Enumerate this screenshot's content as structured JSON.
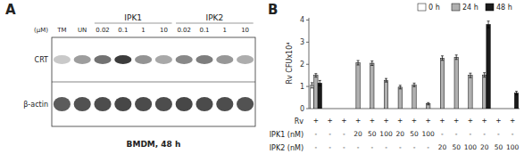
{
  "chart_data": [
    {
      "type": "heatmap",
      "title": "A",
      "xlabel": "(μM)",
      "categories": [
        "TM",
        "UN",
        "0.02",
        "0.1",
        "1",
        "10",
        "0.02",
        "0.1",
        "1",
        "10"
      ],
      "column_groups": [
        null,
        null,
        "IPK1",
        "IPK1",
        "IPK1",
        "IPK1",
        "IPK2",
        "IPK2",
        "IPK2",
        "IPK2"
      ],
      "y_categories": [
        "CRT",
        "β-actin"
      ],
      "values": [
        [
          0.25,
          0.45,
          0.65,
          0.9,
          0.5,
          0.4,
          0.55,
          0.6,
          0.48,
          0.38
        ],
        [
          0.75,
          0.8,
          0.82,
          0.85,
          0.83,
          0.82,
          0.85,
          0.83,
          0.82,
          0.8
        ]
      ],
      "annotation": "BMDM, 48 h"
    },
    {
      "type": "bar",
      "title": "B",
      "ylabel": "Rv CFUx10⁴",
      "ylim": [
        0,
        4.1
      ],
      "yticks": [
        0,
        1,
        2,
        3,
        4
      ],
      "legend": "upper right",
      "category_rows": [
        {
          "name": "Rv",
          "labels": [
            "+",
            "+",
            "+",
            "+",
            "+",
            "+",
            "+",
            "+",
            "+",
            "+",
            "+",
            "+",
            "+",
            "+",
            "+"
          ]
        },
        {
          "name": "IPK1 (nM)",
          "labels": [
            "-",
            "-",
            "-",
            "20",
            "50",
            "100",
            "20",
            "50",
            "100",
            "-",
            "-",
            "-",
            "-",
            "-",
            "-"
          ]
        },
        {
          "name": "IPK2 (nM)",
          "labels": [
            "-",
            "-",
            "-",
            "-",
            "-",
            "-",
            "-",
            "-",
            "-",
            "20",
            "50",
            "100",
            "20",
            "50",
            "100"
          ]
        }
      ],
      "series": [
        {
          "name": "0 h",
          "color": "#ffffff",
          "values": [
            1.05,
            null,
            null,
            null,
            null,
            null,
            null,
            null,
            null,
            null,
            null,
            null,
            null,
            null,
            null
          ],
          "errors": [
            0.12,
            null,
            null,
            null,
            null,
            null,
            null,
            null,
            null,
            null,
            null,
            null,
            null,
            null,
            null
          ]
        },
        {
          "name": "24 h",
          "color": "#b0b0b0",
          "values": [
            1.5,
            null,
            null,
            2.07,
            2.05,
            1.28,
            0.97,
            1.07,
            0.22,
            2.28,
            2.32,
            1.5,
            1.52,
            null,
            null
          ],
          "errors": [
            0.08,
            null,
            null,
            0.1,
            0.1,
            0.08,
            0.08,
            0.08,
            0.05,
            0.1,
            0.1,
            0.1,
            0.1,
            null,
            null
          ]
        },
        {
          "name": "48 h",
          "color": "#1a1a1a",
          "values": [
            1.15,
            null,
            null,
            null,
            null,
            null,
            null,
            null,
            null,
            null,
            null,
            null,
            3.8,
            null,
            0.7
          ],
          "errors": [
            0.12,
            null,
            null,
            null,
            null,
            null,
            null,
            null,
            null,
            null,
            null,
            null,
            0.15,
            null,
            0.08
          ]
        }
      ]
    }
  ]
}
